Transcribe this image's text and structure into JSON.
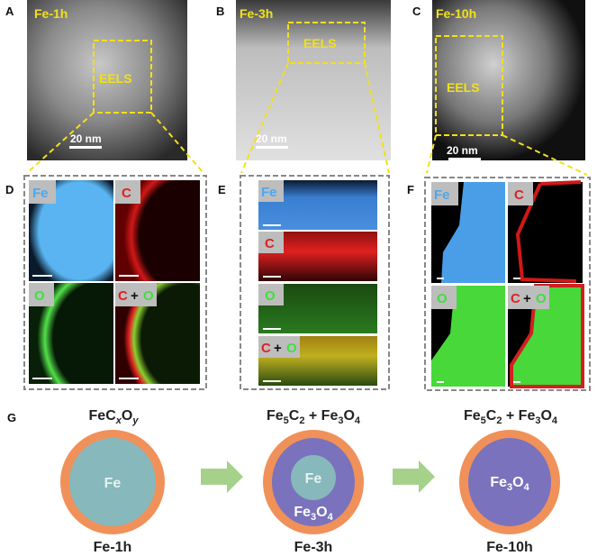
{
  "panels": {
    "A": {
      "letter": "A",
      "sample": "Fe-1h",
      "region": "EELS",
      "scale": "20 nm"
    },
    "B": {
      "letter": "B",
      "sample": "Fe-3h",
      "region": "EELS",
      "scale": "20 nm"
    },
    "C": {
      "letter": "C",
      "sample": "Fe-10h",
      "region": "EELS",
      "scale": "20 nm"
    },
    "D": {
      "letter": "D"
    },
    "E": {
      "letter": "E"
    },
    "F": {
      "letter": "F"
    }
  },
  "maps": {
    "fe": "Fe",
    "c": "C",
    "o": "O",
    "plus": "+"
  },
  "schematic": {
    "letter": "G",
    "stages": [
      {
        "top_parts": [
          "FeC",
          "x",
          "O",
          "y"
        ],
        "core": "Fe",
        "bottom": "Fe-1h"
      },
      {
        "top_parts": [
          "Fe",
          "5",
          "C",
          "2",
          " + Fe",
          "3",
          "O",
          "4"
        ],
        "core": "Fe",
        "shell": [
          "Fe",
          "3",
          "O",
          "4"
        ],
        "bottom": "Fe-3h"
      },
      {
        "top_parts": [
          "Fe",
          "5",
          "C",
          "2",
          " + Fe",
          "3",
          "O",
          "4"
        ],
        "core": [
          "Fe",
          "3",
          "O",
          "4"
        ],
        "bottom": "Fe-10h"
      }
    ]
  },
  "colors": {
    "label_yellow": "#f2e01a",
    "fe_blue": "#4aa8f0",
    "c_red": "#e02020",
    "o_green": "#3ee03e",
    "shell_orange": "#f0915a",
    "fe_teal": "#86b8bc",
    "fe3o4_purple": "#7a72bc",
    "arrow_green": "#a6d18a"
  }
}
